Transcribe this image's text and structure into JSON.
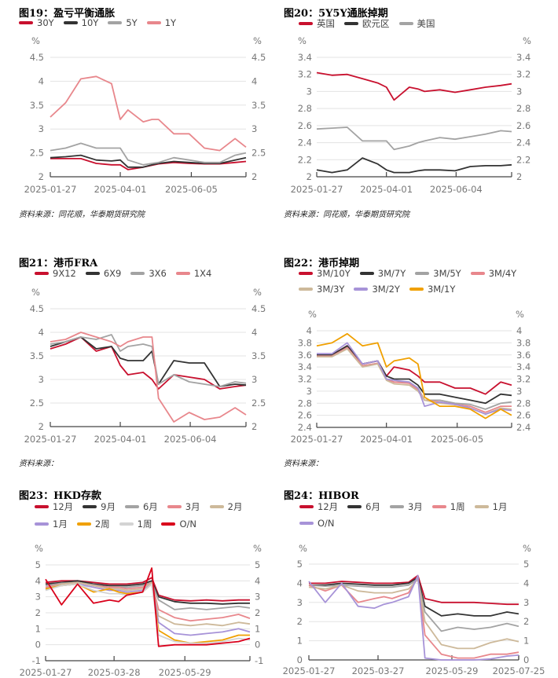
{
  "colors": {
    "red": "#c8102e",
    "black": "#333333",
    "gray": "#a3a3a3",
    "pink": "#e8878c",
    "tan": "#cdb99a",
    "purple": "#a793d8",
    "orange": "#f0a000",
    "lightgray": "#d3d3d3",
    "brightred": "#d9001b"
  },
  "chart_data": [
    {
      "id": "c19",
      "type": "line",
      "title": "图19：盈亏平衡通胀",
      "source": "资料来源：同花顺，华泰期货研究院",
      "unit_left": "%",
      "unit_right": "%",
      "ylim": [
        2,
        4.5
      ],
      "yticks": [
        "2",
        "2.5",
        "3",
        "3.5",
        "4",
        "4.5"
      ],
      "xlim": [
        "2025-01-27",
        "2025-07-25"
      ],
      "xticks": [
        "2025-01-27",
        "2025-04-01",
        "2025-06-05"
      ],
      "grid": true,
      "legend": "top",
      "x": [
        "2025-01-27",
        "2025-02-10",
        "2025-02-24",
        "2025-03-10",
        "2025-03-24",
        "2025-04-01",
        "2025-04-08",
        "2025-04-22",
        "2025-04-30",
        "2025-05-06",
        "2025-05-20",
        "2025-06-03",
        "2025-06-17",
        "2025-07-01",
        "2025-07-15",
        "2025-07-25"
      ],
      "series": [
        {
          "name": "30Y",
          "color": "red",
          "values": [
            2.38,
            2.38,
            2.38,
            2.28,
            2.25,
            2.25,
            2.15,
            2.2,
            2.24,
            2.27,
            2.3,
            2.28,
            2.27,
            2.27,
            2.3,
            2.32
          ]
        },
        {
          "name": "10Y",
          "color": "black",
          "values": [
            2.4,
            2.42,
            2.45,
            2.35,
            2.33,
            2.35,
            2.2,
            2.2,
            2.25,
            2.28,
            2.32,
            2.3,
            2.28,
            2.28,
            2.35,
            2.4
          ]
        },
        {
          "name": "5Y",
          "color": "gray",
          "values": [
            2.55,
            2.6,
            2.7,
            2.6,
            2.6,
            2.6,
            2.35,
            2.25,
            2.28,
            2.3,
            2.4,
            2.35,
            2.3,
            2.3,
            2.45,
            2.5
          ]
        },
        {
          "name": "1Y",
          "color": "pink",
          "values": [
            3.25,
            3.55,
            4.05,
            4.1,
            3.95,
            3.2,
            3.4,
            3.15,
            3.2,
            3.2,
            2.9,
            2.9,
            2.6,
            2.55,
            2.8,
            2.62
          ]
        }
      ]
    },
    {
      "id": "c20",
      "type": "line",
      "title": "图20：5Y5Y通胀掉期",
      "source": "资料来源：同花顺，华泰期货研究院",
      "unit_left": "%",
      "unit_right": "%",
      "ylim": [
        2,
        3.4
      ],
      "yticks": [
        "2",
        "2.2",
        "2.4",
        "2.6",
        "2.8",
        "3",
        "3.2",
        "3.4"
      ],
      "xlim": [
        "2025-01-27",
        "2025-07-25"
      ],
      "xticks": [
        "2025-01-27",
        "2025-04-01",
        "2025-06-04"
      ],
      "grid": true,
      "legend": "top",
      "x": [
        "2025-01-27",
        "2025-02-10",
        "2025-02-24",
        "2025-03-10",
        "2025-03-24",
        "2025-04-01",
        "2025-04-08",
        "2025-04-22",
        "2025-04-30",
        "2025-05-06",
        "2025-05-20",
        "2025-06-03",
        "2025-06-17",
        "2025-07-01",
        "2025-07-15",
        "2025-07-25"
      ],
      "series": [
        {
          "name": "英国",
          "color": "red",
          "values": [
            3.22,
            3.19,
            3.2,
            3.15,
            3.1,
            3.05,
            2.9,
            3.05,
            3.03,
            3.0,
            3.02,
            2.99,
            3.02,
            3.05,
            3.07,
            3.09
          ]
        },
        {
          "name": "欧元区",
          "color": "black",
          "values": [
            2.08,
            2.05,
            2.08,
            2.22,
            2.15,
            2.08,
            2.05,
            2.05,
            2.07,
            2.08,
            2.08,
            2.07,
            2.12,
            2.13,
            2.13,
            2.14
          ]
        },
        {
          "name": "美国",
          "color": "gray",
          "values": [
            2.56,
            2.57,
            2.58,
            2.42,
            2.42,
            2.42,
            2.32,
            2.36,
            2.4,
            2.42,
            2.46,
            2.44,
            2.47,
            2.5,
            2.54,
            2.53
          ]
        }
      ]
    },
    {
      "id": "c21",
      "type": "line",
      "title": "图21：港币FRA",
      "source": "资料来源：",
      "unit_left": "%",
      "unit_right": "%",
      "ylim": [
        2,
        4.5
      ],
      "yticks": [
        "2",
        "2.5",
        "3",
        "3.5",
        "4",
        "4.5"
      ],
      "xlim": [
        "2025-01-27",
        "2025-07-25"
      ],
      "xticks": [
        "2025-01-27",
        "2025-04-01",
        "2025-06-04"
      ],
      "grid": true,
      "legend": "top",
      "x": [
        "2025-01-27",
        "2025-02-10",
        "2025-02-24",
        "2025-03-10",
        "2025-03-24",
        "2025-04-01",
        "2025-04-08",
        "2025-04-22",
        "2025-04-30",
        "2025-05-06",
        "2025-05-20",
        "2025-06-03",
        "2025-06-17",
        "2025-07-01",
        "2025-07-15",
        "2025-07-25"
      ],
      "series": [
        {
          "name": "9X12",
          "color": "red",
          "values": [
            3.65,
            3.75,
            3.9,
            3.6,
            3.7,
            3.3,
            3.1,
            3.15,
            3.0,
            2.8,
            3.1,
            3.05,
            3.0,
            2.8,
            2.85,
            2.88
          ]
        },
        {
          "name": "6X9",
          "color": "black",
          "values": [
            3.7,
            3.8,
            3.9,
            3.65,
            3.7,
            3.45,
            3.4,
            3.4,
            3.6,
            2.9,
            3.4,
            3.35,
            3.35,
            2.85,
            2.9,
            2.88
          ]
        },
        {
          "name": "3X6",
          "color": "gray",
          "values": [
            3.75,
            3.8,
            3.9,
            3.85,
            3.95,
            3.6,
            3.7,
            3.75,
            3.7,
            2.9,
            3.1,
            2.95,
            2.9,
            2.85,
            2.95,
            2.92
          ]
        },
        {
          "name": "1X4",
          "color": "pink",
          "values": [
            3.8,
            3.85,
            4.0,
            3.9,
            3.8,
            3.7,
            3.8,
            3.9,
            3.9,
            2.6,
            2.1,
            2.3,
            2.15,
            2.2,
            2.4,
            2.25
          ]
        }
      ]
    },
    {
      "id": "c22",
      "type": "line",
      "title": "图22：港币掉期",
      "source": "资料来源：",
      "unit_left": "%",
      "unit_right": "%",
      "ylim": [
        2.4,
        4
      ],
      "yticks": [
        "2.4",
        "2.6",
        "2.8",
        "3",
        "3.2",
        "3.4",
        "3.6",
        "3.8",
        "4"
      ],
      "xlim": [
        "2025-01-27",
        "2025-07-25"
      ],
      "xticks": [
        "2025-01-27",
        "2025-04-01",
        "2025-06-05"
      ],
      "grid": true,
      "legend": "top",
      "x": [
        "2025-01-27",
        "2025-02-10",
        "2025-02-24",
        "2025-03-10",
        "2025-03-24",
        "2025-04-01",
        "2025-04-08",
        "2025-04-22",
        "2025-04-30",
        "2025-05-06",
        "2025-05-20",
        "2025-06-03",
        "2025-06-17",
        "2025-07-01",
        "2025-07-15",
        "2025-07-25"
      ],
      "series": [
        {
          "name": "3M/10Y",
          "color": "red",
          "values": [
            3.6,
            3.6,
            3.75,
            3.45,
            3.5,
            3.25,
            3.4,
            3.35,
            3.25,
            3.15,
            3.15,
            3.05,
            3.05,
            2.95,
            3.15,
            3.1
          ]
        },
        {
          "name": "3M/7Y",
          "color": "black",
          "values": [
            3.6,
            3.6,
            3.75,
            3.45,
            3.5,
            3.25,
            3.2,
            3.2,
            3.1,
            2.95,
            2.95,
            2.9,
            2.85,
            2.8,
            2.95,
            2.93
          ]
        },
        {
          "name": "3M/5Y",
          "color": "gray",
          "values": [
            3.58,
            3.58,
            3.72,
            3.42,
            3.46,
            3.2,
            3.15,
            3.15,
            3.05,
            2.85,
            2.85,
            2.8,
            2.78,
            2.7,
            2.8,
            2.82
          ]
        },
        {
          "name": "3M/4Y",
          "color": "pink",
          "values": [
            3.58,
            3.58,
            3.72,
            3.42,
            3.46,
            3.2,
            3.15,
            3.13,
            3.02,
            2.85,
            2.82,
            2.78,
            2.75,
            2.65,
            2.75,
            2.75
          ]
        },
        {
          "name": "3M/3Y",
          "color": "tan",
          "values": [
            3.57,
            3.57,
            3.7,
            3.4,
            3.45,
            3.18,
            3.12,
            3.1,
            3.0,
            2.85,
            2.8,
            2.78,
            2.72,
            2.62,
            2.72,
            2.7
          ]
        },
        {
          "name": "3M/2Y",
          "color": "purple",
          "values": [
            3.62,
            3.62,
            3.8,
            3.45,
            3.5,
            3.2,
            3.18,
            3.15,
            3.05,
            2.75,
            2.82,
            2.78,
            2.72,
            2.62,
            2.7,
            2.68
          ]
        },
        {
          "name": "3M/1Y",
          "color": "orange",
          "values": [
            3.75,
            3.8,
            3.95,
            3.75,
            3.8,
            3.4,
            3.5,
            3.55,
            3.45,
            2.9,
            2.75,
            2.75,
            2.7,
            2.55,
            2.7,
            2.6
          ]
        }
      ]
    },
    {
      "id": "c23",
      "type": "line",
      "title": "图23：HKD存款",
      "source": "",
      "unit_left": "%",
      "unit_right": "%",
      "ylim": [
        -1,
        5
      ],
      "yticks": [
        "-1",
        "0",
        "1",
        "2",
        "3",
        "4",
        "5"
      ],
      "xlim": [
        "2025-01-27",
        "2025-07-25"
      ],
      "xticks": [
        "2025-01-27",
        "2025-03-28",
        "2025-05-29"
      ],
      "grid": true,
      "legend": "top",
      "x": [
        "2025-01-27",
        "2025-02-10",
        "2025-02-24",
        "2025-03-10",
        "2025-03-24",
        "2025-04-01",
        "2025-04-08",
        "2025-04-22",
        "2025-04-30",
        "2025-05-06",
        "2025-05-20",
        "2025-06-03",
        "2025-06-17",
        "2025-07-01",
        "2025-07-15",
        "2025-07-25"
      ],
      "series": [
        {
          "name": "12月",
          "color": "red",
          "values": [
            3.9,
            4.0,
            4.0,
            3.9,
            3.8,
            3.8,
            3.8,
            3.9,
            4.2,
            3.1,
            2.8,
            2.75,
            2.8,
            2.75,
            2.8,
            2.8
          ]
        },
        {
          "name": "9月",
          "color": "black",
          "values": [
            3.8,
            3.9,
            4.0,
            3.8,
            3.7,
            3.7,
            3.7,
            3.8,
            4.0,
            3.0,
            2.7,
            2.6,
            2.6,
            2.55,
            2.6,
            2.6
          ]
        },
        {
          "name": "6月",
          "color": "gray",
          "values": [
            3.7,
            3.85,
            3.9,
            3.75,
            3.6,
            3.6,
            3.6,
            3.7,
            3.9,
            2.8,
            2.2,
            2.3,
            2.2,
            2.3,
            2.4,
            2.3
          ]
        },
        {
          "name": "3月",
          "color": "pink",
          "values": [
            3.6,
            3.8,
            3.9,
            3.7,
            3.6,
            3.6,
            3.5,
            3.6,
            3.9,
            2.2,
            1.7,
            1.5,
            1.6,
            1.7,
            1.9,
            1.65
          ]
        },
        {
          "name": "2月",
          "color": "tan",
          "values": [
            3.5,
            3.8,
            3.9,
            3.7,
            3.5,
            3.5,
            3.4,
            3.5,
            3.9,
            1.8,
            1.3,
            1.2,
            1.3,
            1.2,
            1.4,
            1.3
          ]
        },
        {
          "name": "1月",
          "color": "purple",
          "values": [
            3.5,
            3.7,
            3.8,
            3.6,
            3.4,
            3.4,
            3.3,
            3.4,
            3.8,
            1.4,
            0.7,
            0.6,
            0.7,
            0.8,
            1.0,
            0.8
          ]
        },
        {
          "name": "2周",
          "color": "orange",
          "values": [
            3.5,
            3.7,
            3.8,
            3.3,
            3.5,
            3.3,
            3.2,
            3.3,
            3.8,
            0.9,
            0.3,
            0.1,
            0.2,
            0.3,
            0.6,
            0.6
          ]
        },
        {
          "name": "1周",
          "color": "lightgray",
          "values": [
            3.4,
            3.7,
            3.8,
            3.4,
            3.2,
            3.2,
            3.1,
            3.3,
            3.8,
            0.6,
            0.2,
            0.1,
            0.1,
            0.2,
            0.4,
            0.3
          ]
        },
        {
          "name": "O/N",
          "color": "brightred",
          "values": [
            4.1,
            2.5,
            3.8,
            2.6,
            2.8,
            2.7,
            3.1,
            3.3,
            4.8,
            -0.1,
            0.0,
            0.0,
            0.0,
            0.1,
            0.2,
            0.4
          ]
        }
      ]
    },
    {
      "id": "c24",
      "type": "line",
      "title": "图24：HIBOR",
      "source": "",
      "unit_left": "%",
      "unit_right": "%",
      "ylim": [
        0,
        5
      ],
      "yticks": [
        "0",
        "1",
        "2",
        "3",
        "4",
        "5"
      ],
      "xlim": [
        "2025-01-27",
        "2025-07-25"
      ],
      "xticks": [
        "2025-01-27",
        "2025-03-27",
        "2025-05-29",
        "2025-07-25"
      ],
      "grid": true,
      "legend": "top",
      "x": [
        "2025-01-27",
        "2025-02-10",
        "2025-02-24",
        "2025-03-10",
        "2025-03-24",
        "2025-04-01",
        "2025-04-08",
        "2025-04-22",
        "2025-04-30",
        "2025-05-06",
        "2025-05-20",
        "2025-06-03",
        "2025-06-17",
        "2025-07-01",
        "2025-07-15",
        "2025-07-25"
      ],
      "series": [
        {
          "name": "12月",
          "color": "red",
          "values": [
            4.0,
            4.0,
            4.1,
            4.05,
            4.0,
            4.0,
            4.0,
            4.05,
            4.4,
            3.2,
            3.0,
            3.0,
            3.0,
            2.95,
            2.9,
            2.9
          ]
        },
        {
          "name": "6月",
          "color": "black",
          "values": [
            3.9,
            3.9,
            4.0,
            3.95,
            3.9,
            3.9,
            3.9,
            4.0,
            4.3,
            2.8,
            2.3,
            2.4,
            2.3,
            2.3,
            2.5,
            2.4
          ]
        },
        {
          "name": "3月",
          "color": "gray",
          "values": [
            3.9,
            3.85,
            3.9,
            3.85,
            3.8,
            3.8,
            3.8,
            3.9,
            4.2,
            2.5,
            1.5,
            1.7,
            1.6,
            1.7,
            1.9,
            1.75
          ]
        },
        {
          "name": "1周",
          "color": "pink",
          "values": [
            3.9,
            3.6,
            3.9,
            3.0,
            3.2,
            3.3,
            3.2,
            3.5,
            4.3,
            1.3,
            0.3,
            0.1,
            0.1,
            0.3,
            0.3,
            0.4
          ]
        },
        {
          "name": "1月",
          "color": "tan",
          "values": [
            3.8,
            3.7,
            3.9,
            3.6,
            3.5,
            3.5,
            3.5,
            3.7,
            4.2,
            2.0,
            0.8,
            0.6,
            0.6,
            0.9,
            1.1,
            0.95
          ]
        },
        {
          "name": "O/N",
          "color": "purple",
          "values": [
            4.1,
            3.0,
            4.0,
            2.8,
            2.7,
            2.9,
            3.0,
            3.3,
            4.4,
            0.1,
            0.0,
            0.0,
            0.0,
            0.05,
            0.2,
            0.25
          ]
        }
      ]
    }
  ]
}
